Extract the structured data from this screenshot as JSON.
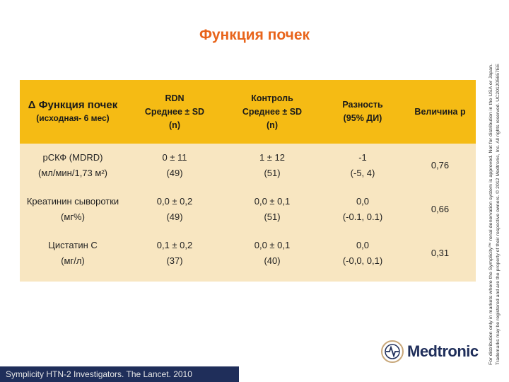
{
  "title": "Функция почек",
  "table": {
    "header": {
      "col0_main": "Δ Функция почек",
      "col0_sub": "(исходная- 6 мес)",
      "col1": [
        "RDN",
        "Среднее ± SD",
        "(n)"
      ],
      "col2": [
        "Контроль",
        "Среднее ± SD",
        "(n)"
      ],
      "col3": [
        "Разность",
        "(95% ДИ)"
      ],
      "col4": "Величина p"
    },
    "rows": [
      {
        "name": [
          "рСКФ (MDRD)",
          "(мл/мин/1,73 м²)"
        ],
        "rdn": [
          "0 ± 11",
          "(49)"
        ],
        "control": [
          "1 ± 12",
          "(51)"
        ],
        "diff": [
          "-1",
          "(-5, 4)"
        ],
        "p": "0,76"
      },
      {
        "name": [
          "Креатинин сыворотки",
          "(мг%)"
        ],
        "rdn": [
          "0,0 ± 0,2",
          "(49)"
        ],
        "control": [
          "0,0 ± 0,1",
          "(51)"
        ],
        "diff": [
          "0,0",
          "(-0.1, 0.1)"
        ],
        "p": "0,66"
      },
      {
        "name": [
          "Цистатин C",
          "(мг/л)"
        ],
        "rdn": [
          "0,1 ± 0,2",
          "(37)"
        ],
        "control": [
          "0,0 ± 0,1",
          "(40)"
        ],
        "diff": [
          "0,0",
          "(-0,0, 0,1)"
        ],
        "p": "0,31"
      }
    ]
  },
  "side_note": [
    "For distribution only in markets where the Symplicity™ renal denervation system is approved. Not for distribution in the USA or Japan.",
    "Trademarks may be registered and are the property of their respective owners. © 2012 Medtronic, Inc. All rights reserved. UC201205657EE"
  ],
  "footer": "Symplicity HTN-2 Investigators.  The Lancet. 2010",
  "logo": {
    "text": "Medtronic",
    "icon": "medtronic-logo-icon"
  },
  "colors": {
    "title": "#e8641b",
    "header": "#f5bb14",
    "body": "#f8e6c1",
    "footer": "#1f2e5a"
  }
}
